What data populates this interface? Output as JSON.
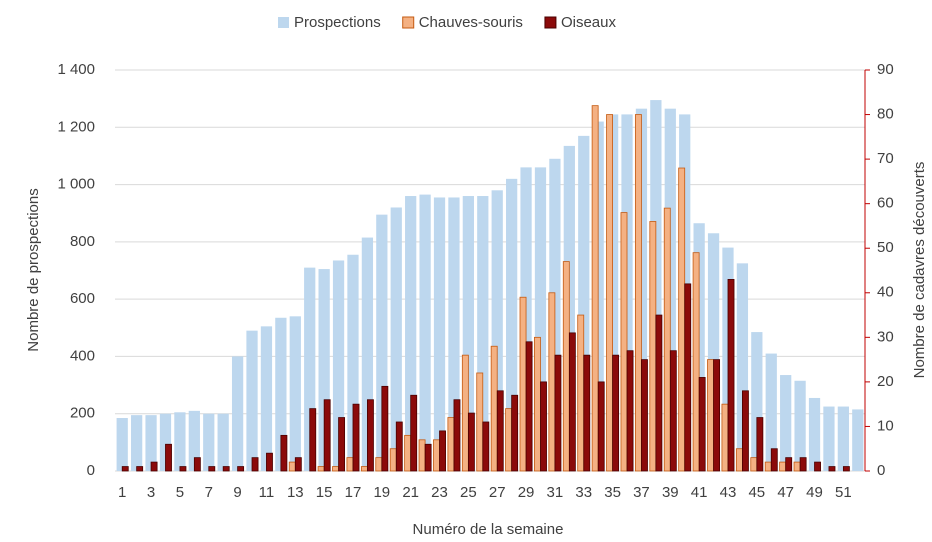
{
  "chart_data": {
    "type": "bar",
    "xlabel": "Numéro de la semaine",
    "ylabel": "Nombre de prospections",
    "y2label": "Nombre de cadavres découverts",
    "categories": [
      1,
      null,
      3,
      null,
      5,
      null,
      7,
      null,
      9,
      null,
      11,
      null,
      13,
      null,
      15,
      null,
      17,
      null,
      19,
      null,
      21,
      null,
      23,
      null,
      25,
      null,
      27,
      null,
      29,
      null,
      31,
      null,
      33,
      null,
      35,
      null,
      37,
      null,
      39,
      null,
      41,
      null,
      43,
      null,
      45,
      null,
      47,
      null,
      49,
      null,
      51,
      null
    ],
    "series": [
      {
        "name": "Prospections",
        "color": "#bdd7ee",
        "values": [
          185,
          195,
          195,
          200,
          205,
          210,
          200,
          200,
          400,
          490,
          505,
          535,
          540,
          710,
          705,
          735,
          755,
          815,
          895,
          920,
          960,
          965,
          955,
          955,
          960,
          960,
          980,
          1020,
          1060,
          1060,
          1090,
          1135,
          1170,
          1220,
          1245,
          1245,
          1265,
          1295,
          1265,
          1245,
          865,
          830,
          780,
          725,
          485,
          410,
          335,
          315,
          255,
          225,
          225,
          215
        ]
      },
      {
        "name": "Chauves-souris",
        "color": "#f4b183",
        "axis": "y2",
        "values": [
          0,
          0,
          0,
          0,
          0,
          0,
          0,
          0,
          0,
          0,
          0,
          0,
          2,
          0,
          1,
          1,
          3,
          1,
          3,
          5,
          8,
          7,
          7,
          12,
          26,
          22,
          28,
          14,
          39,
          30,
          40,
          47,
          35,
          82,
          80,
          58,
          80,
          56,
          59,
          68,
          49,
          25,
          15,
          5,
          3,
          2,
          2,
          2,
          0,
          0,
          0,
          0
        ]
      },
      {
        "name": "Oiseaux",
        "color": "#8b0a0a",
        "axis": "y2",
        "values": [
          1,
          1,
          2,
          6,
          1,
          3,
          1,
          1,
          1,
          3,
          4,
          8,
          3,
          14,
          16,
          12,
          15,
          16,
          19,
          11,
          17,
          6,
          9,
          16,
          13,
          11,
          18,
          17,
          29,
          20,
          26,
          31,
          26,
          20,
          26,
          27,
          25,
          35,
          27,
          42,
          21,
          25,
          43,
          18,
          12,
          5,
          3,
          3,
          2,
          1,
          1,
          0
        ]
      }
    ],
    "ylim": [
      0,
      1400
    ],
    "yticks": [
      0,
      200,
      400,
      600,
      800,
      {
        "value": 1000,
        "label": "1 000"
      },
      {
        "value": 1200,
        "label": "1 200"
      },
      {
        "value": 1400,
        "label": "1 400"
      }
    ],
    "y2lim": [
      0,
      90
    ],
    "y2ticks": [
      0,
      10,
      20,
      30,
      40,
      50,
      60,
      70,
      80,
      90
    ],
    "grid": true,
    "legend": "top"
  }
}
